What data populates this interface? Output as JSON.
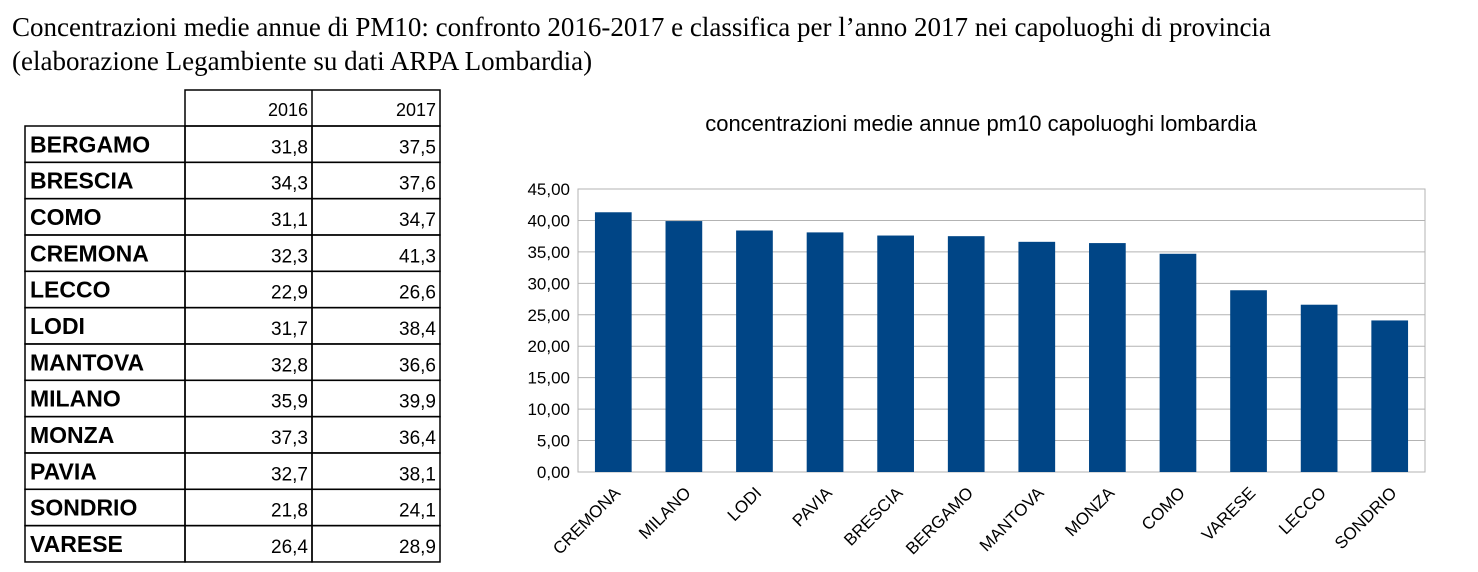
{
  "header": {
    "title": "Concentrazioni medie annue di PM10: confronto 2016-2017 e classifica  per l’anno 2017 nei capoluoghi di provincia",
    "subtitle": "(elaborazione Legambiente su dati ARPA Lombardia)"
  },
  "table": {
    "columns": [
      "2016",
      "2017"
    ],
    "rows": [
      [
        "BERGAMO",
        "31,8",
        "37,5"
      ],
      [
        "BRESCIA",
        "34,3",
        "37,6"
      ],
      [
        "COMO",
        "31,1",
        "34,7"
      ],
      [
        "CREMONA",
        "32,3",
        "41,3"
      ],
      [
        "LECCO",
        "22,9",
        "26,6"
      ],
      [
        "LODI",
        "31,7",
        "38,4"
      ],
      [
        "MANTOVA",
        "32,8",
        "36,6"
      ],
      [
        "MILANO",
        "35,9",
        "39,9"
      ],
      [
        "MONZA",
        "37,3",
        "36,4"
      ],
      [
        "PAVIA",
        "32,7",
        "38,1"
      ],
      [
        "SONDRIO",
        "21,8",
        "24,1"
      ],
      [
        "VARESE",
        "26,4",
        "28,9"
      ]
    ]
  },
  "chart_data": {
    "type": "bar",
    "title": "concentrazioni medie annue pm10 capoluoghi lombardia",
    "categories": [
      "CREMONA",
      "MILANO",
      "LODI",
      "PAVIA",
      "BRESCIA",
      "BERGAMO",
      "MANTOVA",
      "MONZA",
      "COMO",
      "VARESE",
      "LECCO",
      "SONDRIO"
    ],
    "values": [
      41.3,
      39.9,
      38.4,
      38.1,
      37.6,
      37.5,
      36.6,
      36.4,
      34.7,
      28.9,
      26.6,
      24.1
    ],
    "color": "#004586",
    "ylim": [
      0,
      45
    ],
    "yticks": [
      {
        "value": 0,
        "label": "0,00"
      },
      {
        "value": 5,
        "label": "5,00"
      },
      {
        "value": 10,
        "label": "10,00"
      },
      {
        "value": 15,
        "label": "15,00"
      },
      {
        "value": 20,
        "label": "20,00"
      },
      {
        "value": 25,
        "label": "25,00"
      },
      {
        "value": 30,
        "label": "30,00"
      },
      {
        "value": 35,
        "label": "35,00"
      },
      {
        "value": 40,
        "label": "40,00"
      },
      {
        "value": 45,
        "label": "45,00"
      }
    ],
    "grid": true
  }
}
